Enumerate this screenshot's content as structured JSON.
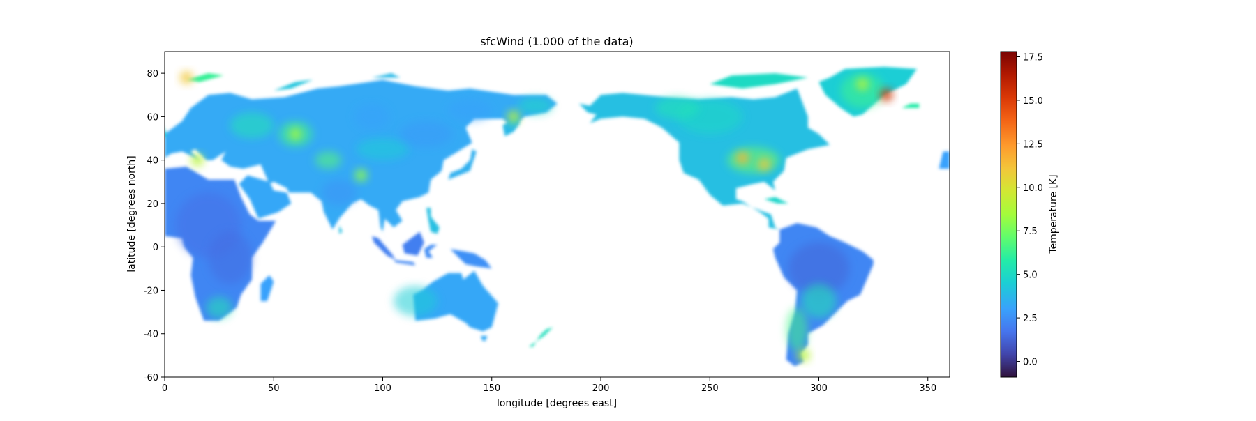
{
  "chart_data": {
    "type": "heatmap",
    "title": "sfcWind (1.000 of the data)",
    "xlabel": "longitude [degrees east]",
    "ylabel": "latitude [degrees north]",
    "xlim": [
      0,
      360
    ],
    "ylim": [
      -60,
      90
    ],
    "xticks": [
      0,
      50,
      100,
      150,
      200,
      250,
      300,
      350
    ],
    "yticks": [
      -60,
      -40,
      -20,
      0,
      20,
      40,
      60,
      80
    ],
    "grid": false,
    "colorbar": {
      "label": "Temperature [K]",
      "colormap": "turbo",
      "range": [
        -0.9,
        17.8
      ],
      "ticks": [
        0.0,
        2.5,
        5.0,
        7.5,
        10.0,
        12.5,
        15.0,
        17.5
      ],
      "tick_labels": [
        "0.0",
        "2.5",
        "5.0",
        "7.5",
        "10.0",
        "12.5",
        "15.0",
        "17.5"
      ],
      "position": "right"
    },
    "field_description": {
      "ocean": "no data (white)",
      "typical_land_range": [
        1,
        6
      ],
      "maxima_regions": [
        "Greenland coast",
        "central North America",
        "Central Asia",
        "southern South America"
      ]
    },
    "hotspots": [
      {
        "lon": 265,
        "lat": 41,
        "value": 11.5
      },
      {
        "lon": 275,
        "lat": 38,
        "value": 11.0
      },
      {
        "lon": 331,
        "lat": 70,
        "value": 15.5
      },
      {
        "lon": 320,
        "lat": 75,
        "value": 9.0
      },
      {
        "lon": 60,
        "lat": 52,
        "value": 8.5
      },
      {
        "lon": 90,
        "lat": 33,
        "value": 8.0
      },
      {
        "lon": 293,
        "lat": -50,
        "value": 9.0
      },
      {
        "lon": 160,
        "lat": 60,
        "value": 9.0
      },
      {
        "lon": 15,
        "lat": 40,
        "value": 9.0
      },
      {
        "lon": 10,
        "lat": 78,
        "value": 11.0
      }
    ]
  }
}
